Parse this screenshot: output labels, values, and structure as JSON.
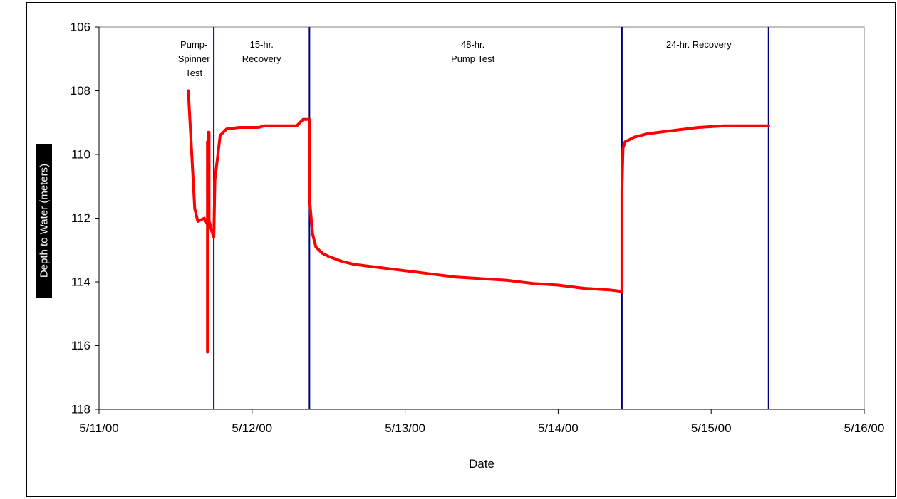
{
  "chart_data": {
    "type": "line",
    "title": "",
    "xlabel": "Date",
    "ylabel": "Depth to Water (meters)",
    "x_ticks": [
      "5/11/00",
      "5/12/00",
      "5/13/00",
      "5/14/00",
      "5/15/00",
      "5/16/00"
    ],
    "xlim": [
      "2000-05-11",
      "2000-05-16"
    ],
    "y_ticks": [
      106,
      108,
      110,
      112,
      114,
      116,
      118
    ],
    "ylim": [
      106,
      118
    ],
    "y_axis_inverted": true,
    "grid": false,
    "legend": "none",
    "colors": {
      "series": "#ff0000",
      "markers": "#000080",
      "axes": "#808080"
    },
    "phase_boundaries": [
      "2000-05-11T18:00",
      "2000-05-12T09:00",
      "2000-05-14T10:00",
      "2000-05-15T09:00"
    ],
    "annotations": [
      {
        "lines": [
          "Pump-",
          "Spinner",
          "Test"
        ]
      },
      {
        "lines": [
          "15-hr.",
          "Recovery"
        ]
      },
      {
        "lines": [
          "48-hr.",
          "Pump Test"
        ]
      },
      {
        "lines": [
          "24-hr. Recovery"
        ]
      }
    ],
    "series": [
      {
        "x": [
          "2000-05-11T14:00",
          "2000-05-11T15:00",
          "2000-05-11T15:30",
          "2000-05-11T16:30",
          "2000-05-11T17:00",
          "2000-05-11T17:00",
          "2000-05-11T17:00",
          "2000-05-11T17:05",
          "2000-05-11T17:00",
          "2000-05-11T17:10",
          "2000-05-11T17:05",
          "2000-05-11T17:10",
          "2000-05-11T17:15",
          "2000-05-11T17:15",
          "2000-05-11T17:10",
          "2000-05-11T17:40",
          "2000-05-11T18:00",
          "2000-05-11T18:10",
          "2000-05-11T19:00",
          "2000-05-11T20:00",
          "2000-05-11T22:00",
          "2000-05-12T01:00",
          "2000-05-12T02:00",
          "2000-05-12T05:00",
          "2000-05-12T07:00",
          "2000-05-12T08:00",
          "2000-05-12T09:00",
          "2000-05-12T09:00",
          "2000-05-12T09:30",
          "2000-05-12T10:00",
          "2000-05-12T11:00",
          "2000-05-12T12:00",
          "2000-05-12T14:00",
          "2000-05-12T16:00",
          "2000-05-12T18:00",
          "2000-05-12T20:00",
          "2000-05-13T00:00",
          "2000-05-13T04:00",
          "2000-05-13T08:00",
          "2000-05-13T12:00",
          "2000-05-13T16:00",
          "2000-05-13T20:00",
          "2000-05-14T00:00",
          "2000-05-14T04:00",
          "2000-05-14T08:00",
          "2000-05-14T10:00",
          "2000-05-14T10:00",
          "2000-05-14T10:10",
          "2000-05-14T10:30",
          "2000-05-14T11:00",
          "2000-05-14T12:00",
          "2000-05-14T14:00",
          "2000-05-14T18:00",
          "2000-05-14T22:00",
          "2000-05-15T02:00",
          "2000-05-15T06:00",
          "2000-05-15T09:00"
        ],
        "y": [
          108.0,
          111.7,
          112.1,
          112.0,
          112.2,
          116.2,
          109.6,
          113.5,
          110.0,
          109.3,
          112.1,
          109.6,
          109.3,
          112.2,
          112.0,
          112.4,
          112.6,
          110.8,
          109.4,
          109.2,
          109.15,
          109.15,
          109.1,
          109.1,
          109.1,
          108.9,
          108.9,
          111.4,
          112.5,
          112.9,
          113.1,
          113.2,
          113.35,
          113.45,
          113.5,
          113.55,
          113.65,
          113.75,
          113.85,
          113.9,
          113.95,
          114.05,
          114.1,
          114.2,
          114.25,
          114.3,
          111.1,
          109.8,
          109.6,
          109.55,
          109.45,
          109.35,
          109.25,
          109.15,
          109.1,
          109.1,
          109.1
        ]
      }
    ]
  }
}
